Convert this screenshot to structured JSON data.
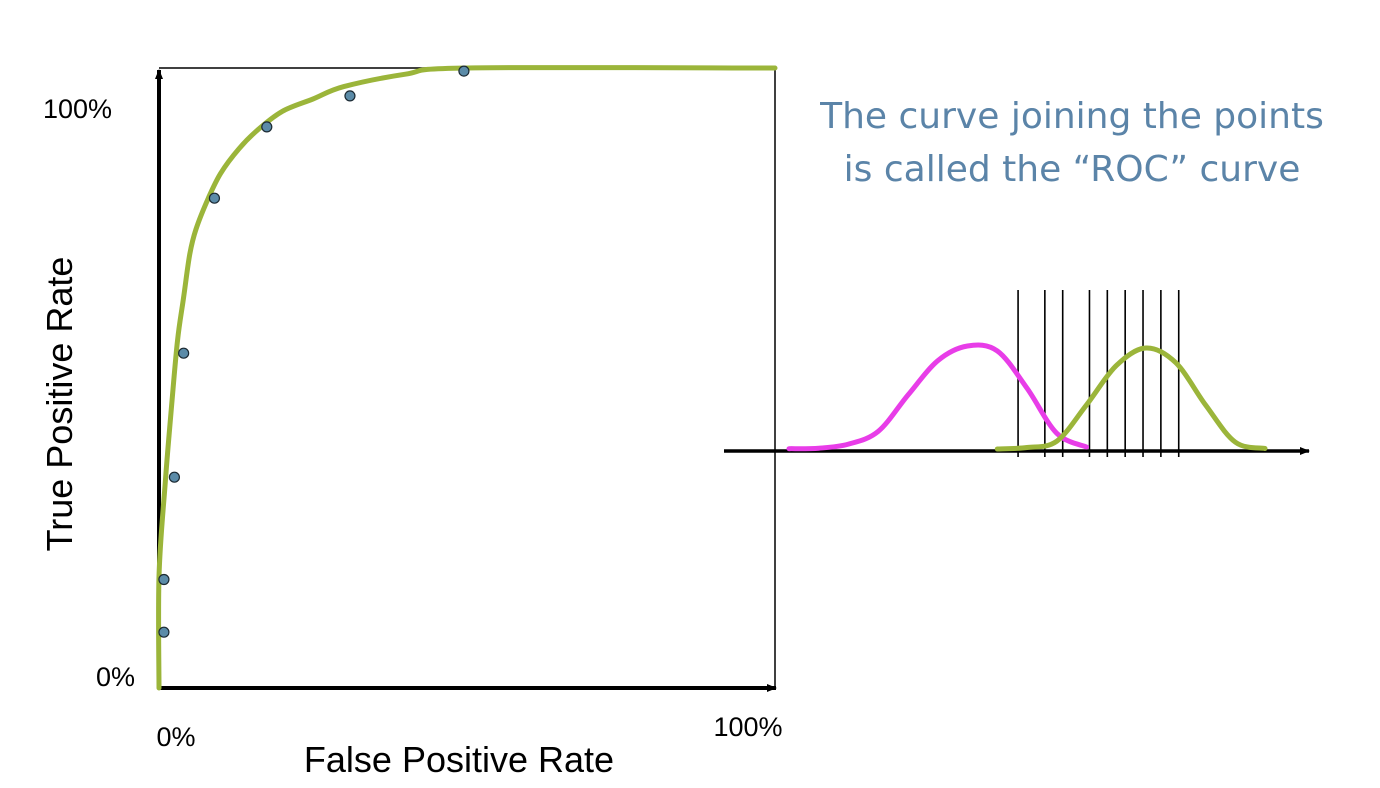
{
  "chart_data": [
    {
      "type": "scatter",
      "title": "",
      "xlabel": "False Positive Rate",
      "ylabel": "True Positive Rate",
      "xlim": [
        0,
        100
      ],
      "ylim": [
        0,
        100
      ],
      "x_tick_labels": [
        "0%",
        "100%"
      ],
      "y_tick_labels": [
        "0%",
        "100%"
      ],
      "grid": false,
      "points": [
        {
          "x": 0.8,
          "y": 9
        },
        {
          "x": 0.8,
          "y": 17.5
        },
        {
          "x": 2.5,
          "y": 34
        },
        {
          "x": 4,
          "y": 54
        },
        {
          "x": 9,
          "y": 79
        },
        {
          "x": 17.5,
          "y": 90.5
        },
        {
          "x": 31,
          "y": 95.5
        },
        {
          "x": 49.5,
          "y": 99.5
        }
      ],
      "fitted_curve": [
        [
          0,
          0
        ],
        [
          0,
          18
        ],
        [
          1,
          33
        ],
        [
          2,
          45
        ],
        [
          3,
          56
        ],
        [
          4,
          63
        ],
        [
          5,
          70
        ],
        [
          6,
          74
        ],
        [
          8,
          79
        ],
        [
          10,
          83
        ],
        [
          13,
          87
        ],
        [
          16,
          90
        ],
        [
          20,
          93
        ],
        [
          25,
          95
        ],
        [
          30,
          97
        ],
        [
          40,
          99
        ],
        [
          50,
          100
        ],
        [
          100,
          100
        ]
      ],
      "point_color": "#5b8ba8",
      "curve_color": "#9bb53a",
      "caption_lines": [
        "The curve joining the points",
        "is called the “ROC” curve"
      ],
      "caption_color": "#5b84a8"
    },
    {
      "type": "line",
      "title": "",
      "xlabel": "",
      "ylabel": "",
      "series": [
        {
          "color": "#e83de8",
          "x": [
            0,
            1,
            2,
            3,
            4,
            5,
            6,
            7,
            8,
            9,
            10
          ],
          "values": [
            0.3,
            0.8,
            5,
            18,
            55,
            90,
            105,
            100,
            62,
            16,
            2
          ]
        },
        {
          "color": "#9bb53a",
          "x": [
            7,
            8,
            9,
            10,
            11,
            12,
            13,
            14,
            15,
            16
          ],
          "values": [
            0,
            1.5,
            8,
            45,
            85,
            103,
            88,
            45,
            7,
            0.5
          ]
        }
      ],
      "x_range": [
        0,
        16
      ],
      "y_range": [
        0,
        110
      ],
      "threshold_x": [
        7.7,
        8.6,
        9.2,
        10.1,
        10.7,
        11.3,
        11.9,
        12.5,
        13.1
      ],
      "threshold_color": "#000000"
    }
  ]
}
